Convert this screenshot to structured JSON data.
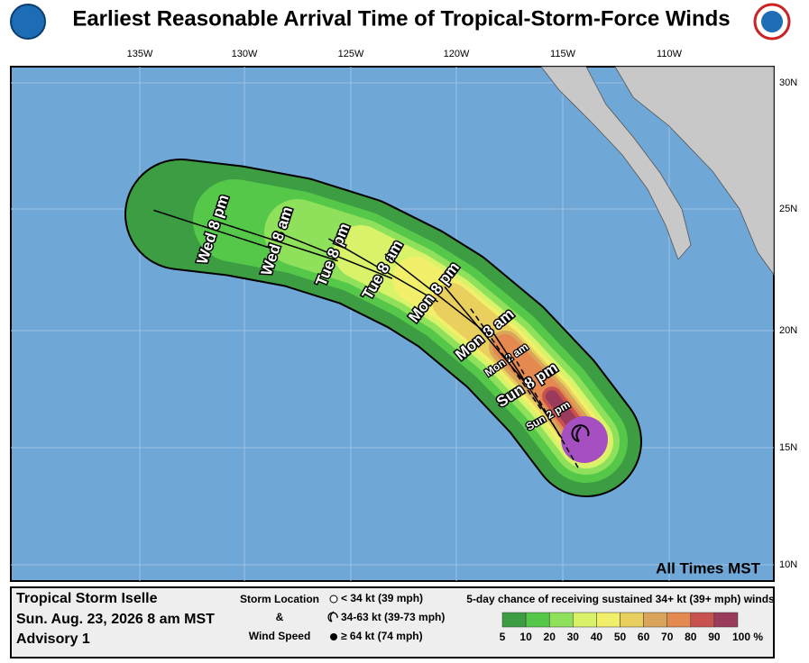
{
  "header": {
    "title": "Earliest Reasonable Arrival Time of Tropical-Storm-Force Winds"
  },
  "map": {
    "lon_labels": [
      "135W",
      "130W",
      "125W",
      "120W",
      "115W",
      "110W"
    ],
    "lat_labels": [
      "30N",
      "25N",
      "20N",
      "15N",
      "10N"
    ],
    "time_labels": [
      "Wed 8 pm",
      "Wed 8 am",
      "Tue 8 pm",
      "Tue 8 am",
      "Mon 8 pm",
      "Mon 8 am",
      "Mon 2 am",
      "Sun 8 pm",
      "Sun 2 pm"
    ],
    "time_note": "All Times MST"
  },
  "legend": {
    "storm_name": "Tropical Storm Iselle",
    "date": "Sun. Aug. 23, 2026  8 am MST",
    "advisory": "Advisory 1",
    "storm_location": "Storm Location",
    "and": "&",
    "wind_speed": "Wind Speed",
    "symbols": [
      "< 34 kt (39 mph)",
      "34-63 kt (39-73 mph)",
      "≥ 64 kt (74 mph)"
    ],
    "scale_title": "5-day chance of receiving sustained 34+ kt (39+ mph) winds",
    "scale_labels": [
      "5",
      "10",
      "20",
      "30",
      "40",
      "50",
      "60",
      "70",
      "80",
      "90",
      "100 %"
    ],
    "scale_colors": [
      "#3c9d42",
      "#55c84a",
      "#8fe05a",
      "#d8f26a",
      "#f2ef6a",
      "#e9cf5d",
      "#d9a55a",
      "#e48a50",
      "#c8534e",
      "#9a3b5c",
      "#a64fc0"
    ]
  }
}
